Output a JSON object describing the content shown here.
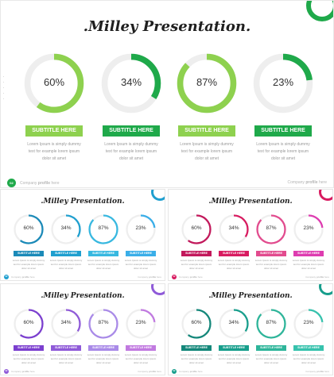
{
  "title": ".Milley Presentation.",
  "items": [
    {
      "percent": "60%",
      "value": 0.6,
      "button": "SUBTITLE HERE",
      "desc": [
        "Lorem Ipsum is simply dummy",
        "text for example lorem ipsum",
        "dolor sit amet"
      ]
    },
    {
      "percent": "34%",
      "value": 0.34,
      "button": "SUBTITLE HERE",
      "desc": [
        "Lorem Ipsum is simply dummy",
        "text for example lorem ipsum",
        "dolor sit amet"
      ]
    },
    {
      "percent": "87%",
      "value": 0.87,
      "button": "SUBTITLE HERE",
      "desc": [
        "Lorem Ipsum is simply dummy",
        "text for example lorem ipsum",
        "dolor sit amet"
      ]
    },
    {
      "percent": "23%",
      "value": 0.23,
      "button": "SUBTITLE HERE",
      "desc": [
        "Lorem Ipsum is simply dummy",
        "text for example lorem ipsum",
        "dolor sit amet"
      ]
    }
  ],
  "footer": {
    "page_number": "02",
    "company_left_prefix": "Company ",
    "company_left_bold": "profile",
    "company_left_suffix": " here",
    "company_right_prefix": "Company ",
    "company_right_bold": "profile",
    "company_right_suffix": " here"
  },
  "themes": [
    {
      "name": "green",
      "colors": [
        "#8ed14f",
        "#1fa94a",
        "#8ed14f",
        "#1fa94a"
      ],
      "accent": "#1fa94a",
      "ring_track": "#eeeeee"
    },
    {
      "name": "blue",
      "colors": [
        "#1b8ab8",
        "#1f9fcf",
        "#37b8e0",
        "#3aaee8"
      ],
      "accent": "#1f9fcf",
      "ring_track": "#eeeeee"
    },
    {
      "name": "pink",
      "colors": [
        "#c2185b",
        "#d81b60",
        "#e24b8e",
        "#de3cb0"
      ],
      "accent": "#d81b60",
      "ring_track": "#eeeeee"
    },
    {
      "name": "purple",
      "colors": [
        "#7b3fcf",
        "#8f5ad8",
        "#a98ae8",
        "#c17ae0"
      ],
      "accent": "#8f5ad8",
      "ring_track": "#eeeeee"
    },
    {
      "name": "teal",
      "colors": [
        "#14877a",
        "#179e8c",
        "#2eb59a",
        "#37c2ad"
      ],
      "accent": "#179e8c",
      "ring_track": "#eeeeee"
    }
  ]
}
